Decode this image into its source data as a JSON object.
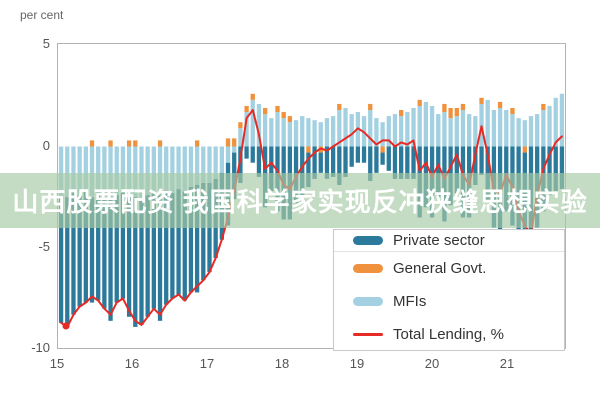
{
  "figure": {
    "unit_label": "per cent"
  },
  "banner": {
    "text": "山西股票配资 我国科学家实现反冲狭缝思想实验",
    "bg_color": "rgba(167,202,165,0.66)",
    "text_color": "#ffffff"
  },
  "legend": {
    "items": [
      {
        "label": "Private sector",
        "color": "#2b7a9b",
        "swatch": "bar"
      },
      {
        "label": "General Govt.",
        "color": "#f0913d",
        "swatch": "bar"
      },
      {
        "label": "MFIs",
        "color": "#a4d1e2",
        "swatch": "bar"
      },
      {
        "label": "Total Lending, %",
        "color": "#e62a25",
        "swatch": "line"
      }
    ]
  },
  "axes": {
    "y_ticks": [
      "5",
      "0",
      "-5",
      "-10"
    ],
    "y_tick_values": [
      5,
      0,
      -5,
      -10
    ],
    "x_ticks": [
      "15",
      "16",
      "17",
      "18",
      "19",
      "20",
      "21"
    ],
    "ylim": [
      -10,
      5
    ],
    "grid": "off",
    "border_color": "#b3b3b3",
    "tick_color": "#555555"
  },
  "chart_data": {
    "type": "bar",
    "stacked": true,
    "x_unit": "month",
    "x_start": "2015-01",
    "x_end": "2021-10",
    "x_tick_labels": [
      "15",
      "16",
      "17",
      "18",
      "19",
      "20",
      "21"
    ],
    "ylim": [
      -10,
      5
    ],
    "series": [
      {
        "name": "MFIs",
        "color": "#a4d1e2",
        "values": [
          -2.4,
          -2.5,
          -2.3,
          -2.4,
          -2.2,
          -2.5,
          -2.3,
          -2.6,
          -2.5,
          -2.4,
          -2.3,
          -2.5,
          -2.5,
          -2.6,
          -2.4,
          -2.3,
          -2.4,
          -2.2,
          -2.3,
          -2.1,
          -2.2,
          -2.0,
          -1.9,
          -1.8,
          -1.8,
          -1.6,
          -1.3,
          -0.8,
          -0.3,
          0.9,
          1.7,
          2.3,
          2.1,
          1.6,
          1.4,
          1.7,
          1.4,
          1.2,
          1.3,
          1.5,
          1.4,
          1.3,
          1.2,
          1.4,
          1.5,
          1.8,
          1.9,
          1.6,
          1.7,
          1.5,
          1.8,
          1.4,
          1.2,
          1.5,
          1.6,
          1.5,
          1.7,
          1.9,
          2.0,
          2.2,
          2.0,
          1.6,
          1.7,
          1.4,
          1.5,
          1.8,
          1.6,
          1.5,
          2.1,
          2.3,
          1.8,
          1.9,
          1.8,
          1.6,
          1.4,
          1.3,
          1.5,
          1.6,
          1.8,
          2.0,
          2.4,
          2.6
        ]
      },
      {
        "name": "General Govt.",
        "color": "#f0913d",
        "values": [
          0,
          0,
          0,
          0,
          0,
          0.3,
          0,
          0,
          0.3,
          0,
          0,
          0.3,
          0.3,
          0,
          0,
          0,
          0.3,
          0,
          0,
          0,
          0,
          0,
          0.3,
          0,
          0,
          0,
          0,
          0.4,
          0.4,
          0.3,
          0.3,
          0.3,
          0,
          0.3,
          0,
          0.3,
          0.3,
          0.3,
          0,
          0,
          -0.3,
          0,
          -0.3,
          0,
          0,
          0.3,
          0,
          0,
          0,
          0,
          0.3,
          0,
          -0.3,
          0,
          0,
          0.3,
          0,
          0,
          0.3,
          0,
          0,
          0,
          0.4,
          0.5,
          0.4,
          0.3,
          0,
          0,
          0.3,
          0,
          0,
          0.3,
          0,
          0.3,
          0,
          -0.3,
          0,
          0,
          0.3,
          0,
          0,
          0
        ]
      },
      {
        "name": "Private sector",
        "color": "#2b7a9b",
        "values": [
          -6.3,
          -6.4,
          -6.0,
          -5.5,
          -5.5,
          -5.2,
          -5.3,
          -5.4,
          -6.1,
          -5.3,
          -5.2,
          -5.9,
          -6.4,
          -6.2,
          -6.0,
          -5.7,
          -6.2,
          -5.6,
          -5.2,
          -5.2,
          -5.4,
          -5.2,
          -5.3,
          -4.8,
          -4.4,
          -3.9,
          -3.3,
          -3.1,
          -2.3,
          -1.8,
          -0.6,
          -0.8,
          -1.5,
          -3.0,
          -2.2,
          -3.2,
          -3.6,
          -3.6,
          -2.8,
          -2.5,
          -1.7,
          -1.6,
          -1.0,
          -1.6,
          -1.5,
          -1.9,
          -1.5,
          -1.0,
          -0.8,
          -0.8,
          -1.7,
          -1.3,
          -0.6,
          -1.2,
          -1.6,
          -1.6,
          -1.6,
          -1.6,
          -3.5,
          -3.0,
          -3.5,
          -2.5,
          -3.7,
          -2.9,
          -2.3,
          -3.5,
          -3.5,
          -1.9,
          -1.4,
          -2.7,
          -4.0,
          -4.5,
          -3.2,
          -3.9,
          -4.6,
          -4.9,
          -5.8,
          -4.0,
          -3.2,
          -2.4,
          -2.2,
          -2.1
        ]
      }
    ],
    "line": {
      "name": "Total Lending, %",
      "color": "#e62a25",
      "values": [
        -8.7,
        -8.9,
        -8.3,
        -7.9,
        -7.7,
        -7.4,
        -7.6,
        -8.0,
        -8.3,
        -7.7,
        -7.5,
        -8.1,
        -8.6,
        -8.8,
        -8.4,
        -8.0,
        -8.3,
        -7.8,
        -7.5,
        -7.3,
        -7.6,
        -7.2,
        -6.9,
        -6.6,
        -6.2,
        -5.5,
        -4.6,
        -3.5,
        -2.2,
        -0.6,
        1.4,
        1.8,
        0.6,
        -1.1,
        -0.8,
        -1.2,
        -1.9,
        -2.1,
        -1.5,
        -1.0,
        -0.6,
        -0.3,
        -0.1,
        -0.2,
        0.0,
        0.2,
        0.4,
        0.6,
        0.9,
        0.7,
        0.4,
        0.1,
        0.3,
        0.3,
        0.0,
        0.2,
        0.1,
        0.3,
        -1.2,
        -0.8,
        -1.5,
        -0.9,
        -1.6,
        -1.0,
        -0.4,
        -1.4,
        -1.9,
        -0.4,
        1.0,
        -0.4,
        -2.2,
        -2.3,
        -1.4,
        -2.0,
        -3.2,
        -3.9,
        -4.3,
        -2.4,
        -1.1,
        -0.4,
        0.2,
        0.5
      ],
      "min_marker": {
        "month": "2021-05",
        "value": -4.3
      }
    }
  }
}
